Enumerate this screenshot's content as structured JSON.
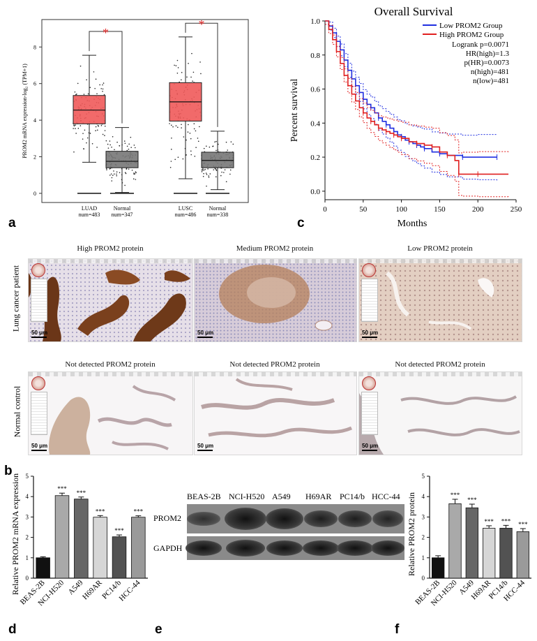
{
  "panels": {
    "a": {
      "letter": "a"
    },
    "b": {
      "letter": "b"
    },
    "c": {
      "letter": "c"
    },
    "d": {
      "letter": "d"
    },
    "e": {
      "letter": "e"
    },
    "f": {
      "letter": "f"
    }
  },
  "histology": {
    "top_row_label": "Lung cancer patient",
    "bottom_row_label": "Normal control",
    "scale_bar": "50 μm",
    "top": [
      {
        "caption": "High PROM2 protein"
      },
      {
        "caption": "Medium  PROM2 protein"
      },
      {
        "caption": "Low PROM2 protein"
      }
    ],
    "bottom": [
      {
        "caption": "Not detected PROM2 protein"
      },
      {
        "caption": "Not detected PROM2 protein"
      },
      {
        "caption": "Not detected PROM2 protein"
      }
    ]
  },
  "western_blot": {
    "lanes": [
      "BEAS-2B",
      "NCI-H520",
      "A549",
      "H69AR",
      "PC14/b",
      "HCC-44"
    ],
    "rows": [
      "PROM2",
      "GAPDH"
    ]
  },
  "colors": {
    "tumor": "#f05a5a",
    "normal": "#777777",
    "low": "#1f2ee0",
    "high": "#e01f1f"
  },
  "chart_data": [
    {
      "id": "a",
      "type": "box",
      "ylabel": "PROM2 mRNA expression-log₂ (TPM+1)",
      "yticks": [
        0,
        2,
        4,
        6,
        8
      ],
      "ylim": [
        -0.5,
        9.5
      ],
      "significance": "*",
      "groups": [
        {
          "name": "LUAD",
          "num": "num=483",
          "q1": 3.8,
          "median": 4.55,
          "q3": 5.35,
          "whisker_low": 1.7,
          "whisker_high": 7.55,
          "color": "#f05a5a"
        },
        {
          "name": "Normal",
          "num": "num=347",
          "q1": 1.4,
          "median": 1.75,
          "q3": 2.3,
          "whisker_low": 0.05,
          "whisker_high": 3.6,
          "color": "#777777"
        },
        {
          "name": "LUSC",
          "num": "num=486",
          "q1": 3.95,
          "median": 5.0,
          "q3": 6.05,
          "whisker_low": 0.8,
          "whisker_high": 8.55,
          "color": "#f05a5a"
        },
        {
          "name": "Normal",
          "num": "num=338",
          "q1": 1.4,
          "median": 1.8,
          "q3": 2.25,
          "whisker_low": 0.2,
          "whisker_high": 3.4,
          "color": "#777777"
        }
      ]
    },
    {
      "id": "c",
      "type": "line",
      "title": "Overall Survival",
      "xlabel": "Months",
      "ylabel": "Percent survival",
      "xlim": [
        0,
        250
      ],
      "ylim": [
        -0.05,
        1.0
      ],
      "xticks": [
        0,
        50,
        100,
        150,
        200,
        250
      ],
      "yticks": [
        0.0,
        0.2,
        0.4,
        0.6,
        0.8,
        1.0
      ],
      "legend": [
        {
          "name": "Low PROM2 Group",
          "color": "#1f2ee0"
        },
        {
          "name": "High PROM2 Group",
          "color": "#e01f1f"
        }
      ],
      "stats": [
        "Logrank p=0.0071",
        "HR(high)=1.3",
        "p(HR)=0.0073",
        "n(high)=481",
        "n(low)=481"
      ],
      "series": [
        {
          "name": "Low PROM2 Group",
          "color": "#1f2ee0",
          "x": [
            0,
            5,
            10,
            15,
            20,
            25,
            30,
            35,
            40,
            45,
            50,
            55,
            60,
            65,
            70,
            75,
            80,
            85,
            90,
            95,
            100,
            105,
            110,
            115,
            120,
            125,
            130,
            140,
            150,
            160,
            180,
            200,
            225
          ],
          "y": [
            1.0,
            0.97,
            0.93,
            0.88,
            0.83,
            0.77,
            0.71,
            0.66,
            0.62,
            0.58,
            0.54,
            0.51,
            0.49,
            0.46,
            0.43,
            0.41,
            0.39,
            0.37,
            0.35,
            0.33,
            0.32,
            0.3,
            0.29,
            0.28,
            0.27,
            0.26,
            0.25,
            0.23,
            0.22,
            0.21,
            0.2,
            0.2,
            0.2
          ]
        },
        {
          "name": "High PROM2 Group",
          "color": "#e01f1f",
          "x": [
            0,
            5,
            10,
            15,
            20,
            25,
            30,
            35,
            40,
            45,
            50,
            55,
            60,
            65,
            70,
            75,
            80,
            85,
            90,
            95,
            100,
            110,
            120,
            130,
            140,
            150,
            160,
            170,
            175,
            180,
            200,
            240
          ],
          "y": [
            1.0,
            0.95,
            0.89,
            0.82,
            0.75,
            0.68,
            0.62,
            0.57,
            0.53,
            0.49,
            0.46,
            0.43,
            0.41,
            0.39,
            0.37,
            0.36,
            0.35,
            0.34,
            0.33,
            0.32,
            0.31,
            0.29,
            0.28,
            0.27,
            0.26,
            0.23,
            0.21,
            0.18,
            0.1,
            0.1,
            0.1,
            0.1
          ]
        }
      ]
    },
    {
      "id": "d",
      "type": "bar",
      "ylabel": "Relative PROM2 mRNA expression",
      "ylim": [
        0,
        5
      ],
      "yticks": [
        0,
        1,
        2,
        3,
        4,
        5
      ],
      "categories": [
        "BEAS-2B",
        "NCI-H520",
        "A549",
        "H69AR",
        "PC14/b",
        "HCC-44"
      ],
      "values": [
        1.0,
        4.05,
        3.88,
        2.99,
        2.03,
        2.99
      ],
      "errors": [
        0.05,
        0.12,
        0.1,
        0.08,
        0.09,
        0.07
      ],
      "labels": [
        "",
        "***",
        "***",
        "***",
        "***",
        "***"
      ],
      "colors": [
        "#111111",
        "#a9a9a9",
        "#666666",
        "#d6d6d6",
        "#525252",
        "#9a9a9a"
      ]
    },
    {
      "id": "f",
      "type": "bar",
      "ylabel": "Relative PROM2 protein",
      "ylim": [
        0,
        5
      ],
      "yticks": [
        0,
        1,
        2,
        3,
        4,
        5
      ],
      "categories": [
        "BEAS-2B",
        "NCI-H520",
        "A549",
        "H69AR",
        "PC14/b",
        "HCC-44"
      ],
      "values": [
        1.0,
        3.65,
        3.45,
        2.45,
        2.45,
        2.28
      ],
      "errors": [
        0.1,
        0.22,
        0.18,
        0.12,
        0.14,
        0.15
      ],
      "labels": [
        "",
        "***",
        "***",
        "***",
        "***",
        "***"
      ],
      "colors": [
        "#111111",
        "#a9a9a9",
        "#666666",
        "#d6d6d6",
        "#525252",
        "#9a9a9a"
      ]
    }
  ]
}
